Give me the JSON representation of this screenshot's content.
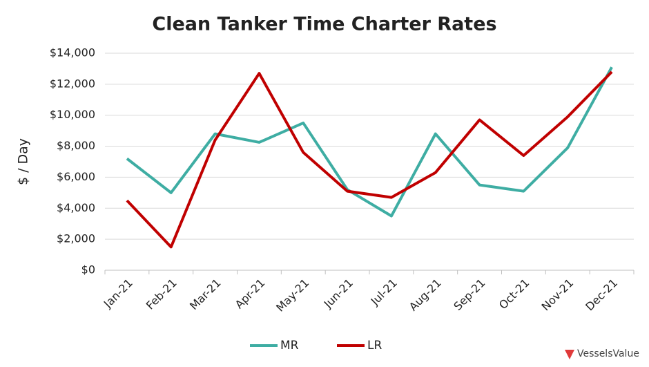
{
  "chart_data": {
    "type": "line",
    "title": "Clean Tanker Time Charter Rates",
    "y_label": "$ / Day",
    "brand": "VesselsValue",
    "categories": [
      "Jan-21",
      "Feb-21",
      "Mar-21",
      "Apr-21",
      "May-21",
      "Jun-21",
      "Jul-21",
      "Aug-21",
      "Sep-21",
      "Oct-21",
      "Nov-21",
      "Dec-21"
    ],
    "series": [
      {
        "name": "MR",
        "color": "#3eada3",
        "values": [
          7200,
          5000,
          8800,
          8250,
          9500,
          5200,
          3500,
          8800,
          5500,
          5100,
          7900,
          13100
        ]
      },
      {
        "name": "LR",
        "color": "#c00000",
        "values": [
          4500,
          1500,
          8400,
          12700,
          7600,
          5100,
          4700,
          6300,
          9700,
          7400,
          9900,
          12800
        ]
      }
    ],
    "ylim": [
      0,
      14000
    ],
    "yticks": [
      {
        "value": 0,
        "label": "$0"
      },
      {
        "value": 2000,
        "label": "$2,000"
      },
      {
        "value": 4000,
        "label": "$4,000"
      },
      {
        "value": 6000,
        "label": "$6,000"
      },
      {
        "value": 8000,
        "label": "$8,000"
      },
      {
        "value": 10000,
        "label": "$10,000"
      },
      {
        "value": 12000,
        "label": "$12,000"
      },
      {
        "value": 14000,
        "label": "$14,000"
      }
    ],
    "grid": true,
    "legend": "bottom"
  }
}
